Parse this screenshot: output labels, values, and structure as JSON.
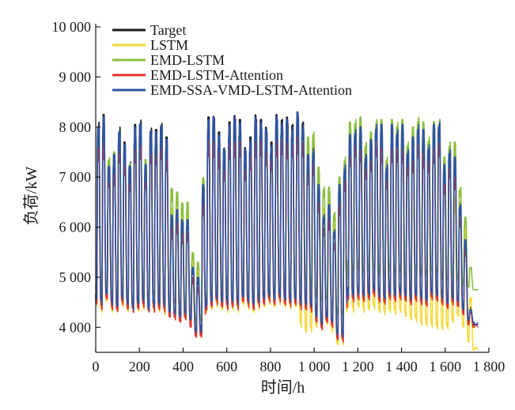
{
  "chart_data": {
    "type": "line",
    "xlabel": "时间/h",
    "ylabel": "负荷/kW",
    "xlim": [
      0,
      1800
    ],
    "ylim": [
      3500,
      10000
    ],
    "xticks": [
      0,
      200,
      400,
      600,
      800,
      1000,
      1200,
      1400,
      1600,
      1800
    ],
    "xtick_labels": [
      "0",
      "200",
      "400",
      "600",
      "800",
      "1 000",
      "1 200",
      "1 400",
      "1 600",
      "1 800"
    ],
    "yticks": [
      4000,
      5000,
      6000,
      7000,
      8000,
      9000,
      10000
    ],
    "ytick_labels": [
      "4 000",
      "5 000",
      "6 000",
      "7 000",
      "8 000",
      "9 000",
      "10 000"
    ],
    "legend_position": "top-left",
    "grid": false,
    "period_hours": 24,
    "x_start": 0,
    "x_end": 1750,
    "day_cycles": {
      "start": [
        0,
        24,
        48,
        72,
        96,
        120,
        144,
        168,
        192,
        216,
        240,
        264,
        288,
        312,
        336,
        360,
        384,
        408,
        432,
        456,
        480,
        504,
        528,
        552,
        576,
        600,
        624,
        648,
        672,
        696,
        720,
        744,
        768,
        792,
        816,
        840,
        864,
        888,
        912,
        936,
        960,
        984,
        1008,
        1032,
        1056,
        1080,
        1104,
        1128,
        1152,
        1176,
        1200,
        1224,
        1248,
        1272,
        1296,
        1320,
        1344,
        1368,
        1392,
        1416,
        1440,
        1464,
        1488,
        1512,
        1536,
        1560,
        1584,
        1608,
        1632,
        1656,
        1680,
        1704,
        1728
      ]
    },
    "series": [
      {
        "name": "Target",
        "color": "#1a1a1a",
        "peaks": [
          8100,
          8250,
          7300,
          7500,
          8000,
          7700,
          7300,
          8050,
          8150,
          7300,
          8000,
          7950,
          8100,
          7800,
          6300,
          6400,
          6200,
          6200,
          5200,
          5000,
          6900,
          8200,
          8250,
          7900,
          7600,
          8100,
          8250,
          8150,
          7600,
          7800,
          8250,
          8150,
          8000,
          7700,
          8250,
          8150,
          8200,
          8050,
          8300,
          8100,
          7500,
          7600,
          6900,
          6300,
          6500,
          6000,
          6900,
          7300,
          7900,
          8000,
          8050,
          7500,
          7800,
          8100,
          8100,
          7300,
          8100,
          8000,
          8100,
          7600,
          7850,
          8100,
          8000,
          7700,
          8100,
          8150,
          7300,
          7600,
          7450,
          6500,
          5800,
          4400,
          4050
        ],
        "troughs": [
          4500,
          4400,
          4600,
          4400,
          4350,
          4500,
          4400,
          4300,
          4400,
          4450,
          4300,
          4350,
          4400,
          4350,
          4250,
          4200,
          4150,
          4200,
          4100,
          3850,
          3850,
          4400,
          4450,
          4500,
          4450,
          4400,
          4450,
          4400,
          4550,
          4450,
          4400,
          4450,
          4500,
          4550,
          4500,
          4550,
          4500,
          4450,
          4500,
          4400,
          4400,
          4350,
          4150,
          4000,
          4150,
          4050,
          3800,
          3750,
          4600,
          4550,
          4600,
          4550,
          4600,
          4650,
          4550,
          4500,
          4600,
          4550,
          4600,
          4550,
          4500,
          4550,
          4500,
          4450,
          4600,
          4550,
          4500,
          4400,
          4500,
          4450,
          4300,
          4100,
          4050
        ]
      },
      {
        "name": "LSTM",
        "color": "#f4d93a",
        "peaks": [
          7900,
          8000,
          7200,
          7300,
          7800,
          7500,
          7150,
          7850,
          7950,
          7200,
          7800,
          7750,
          7900,
          7600,
          6400,
          6500,
          6300,
          6300,
          5400,
          5200,
          6800,
          8000,
          8050,
          7700,
          7450,
          7900,
          8050,
          7950,
          7450,
          7600,
          8050,
          7950,
          7800,
          7500,
          8050,
          7950,
          8000,
          7850,
          8050,
          7900,
          7350,
          7450,
          6900,
          6400,
          6600,
          6100,
          6800,
          7150,
          7700,
          7800,
          7850,
          7350,
          7600,
          7900,
          7900,
          7150,
          7900,
          7800,
          7900,
          7450,
          7650,
          7900,
          7800,
          7500,
          7900,
          7950,
          7150,
          7450,
          6600,
          6300,
          6000,
          4600,
          3600
        ],
        "troughs": [
          4400,
          4300,
          4500,
          4300,
          4300,
          4400,
          4300,
          4350,
          4300,
          4350,
          4300,
          4300,
          4300,
          4250,
          4200,
          4150,
          4100,
          4150,
          4050,
          4000,
          3900,
          4300,
          4350,
          4400,
          4350,
          4300,
          4350,
          4300,
          4450,
          4350,
          4300,
          4350,
          4400,
          4450,
          4400,
          4450,
          4400,
          4350,
          4400,
          4000,
          3900,
          3900,
          4000,
          3950,
          4050,
          3900,
          3650,
          3650,
          4400,
          4300,
          4400,
          4300,
          4350,
          4350,
          4300,
          4250,
          4300,
          4250,
          4300,
          4200,
          4150,
          4100,
          4050,
          4000,
          4000,
          3950,
          3950,
          3950,
          4100,
          4200,
          4000,
          3700,
          3550
        ]
      },
      {
        "name": "EMD-LSTM",
        "color": "#8cbf3f",
        "peaks": [
          8000,
          8100,
          7400,
          7500,
          7900,
          7600,
          7300,
          7950,
          8000,
          7350,
          7900,
          7850,
          8000,
          7700,
          6800,
          6700,
          6500,
          6500,
          5500,
          5300,
          7000,
          8100,
          8150,
          7800,
          7550,
          8000,
          8150,
          8050,
          7550,
          7700,
          8150,
          8050,
          7900,
          7600,
          8150,
          8050,
          8100,
          7950,
          8200,
          8000,
          7800,
          7900,
          7200,
          6800,
          6800,
          6300,
          7000,
          7400,
          8100,
          8150,
          8200,
          7700,
          7900,
          8150,
          8150,
          7400,
          8150,
          8100,
          8150,
          7700,
          8000,
          8200,
          8100,
          7800,
          8100,
          8150,
          7400,
          7700,
          7700,
          6800,
          6200,
          5200,
          4750
        ],
        "troughs": [
          4700,
          4600,
          4800,
          4600,
          4550,
          4700,
          4600,
          4500,
          4650,
          4700,
          4550,
          4600,
          4650,
          4600,
          4500,
          4450,
          4400,
          4450,
          4300,
          4100,
          4100,
          4600,
          4650,
          4700,
          4650,
          4600,
          4650,
          4600,
          4750,
          4650,
          4600,
          4650,
          4700,
          4750,
          4700,
          4750,
          4700,
          4650,
          4700,
          4850,
          4900,
          4800,
          4600,
          4500,
          4550,
          4400,
          4250,
          4200,
          5200,
          5100,
          5150,
          5050,
          5100,
          5150,
          5050,
          5000,
          5100,
          5050,
          5100,
          5000,
          5050,
          5100,
          5050,
          5000,
          5100,
          5050,
          4950,
          4900,
          5000,
          4950,
          4850,
          4800,
          4750
        ]
      },
      {
        "name": "EMD-LSTM-Attention",
        "color": "#e0342a",
        "peaks": [
          7700,
          7800,
          7100,
          7200,
          7700,
          7400,
          7050,
          7700,
          7800,
          7100,
          7700,
          7650,
          7800,
          7500,
          6000,
          6100,
          5900,
          5900,
          5000,
          4800,
          6600,
          7800,
          7850,
          7500,
          7300,
          7700,
          7850,
          7750,
          7300,
          7450,
          7850,
          7750,
          7650,
          7400,
          7850,
          7750,
          7800,
          7700,
          7900,
          7700,
          7200,
          7300,
          6600,
          6000,
          6200,
          5700,
          6600,
          7000,
          7600,
          7700,
          7700,
          7200,
          7500,
          7700,
          7700,
          7000,
          7700,
          7600,
          7700,
          7300,
          7500,
          7700,
          7600,
          7400,
          7700,
          7750,
          7000,
          7300,
          7100,
          6200,
          5600,
          4300,
          4050
        ],
        "troughs": [
          4450,
          4350,
          4550,
          4350,
          4300,
          4450,
          4350,
          4300,
          4350,
          4400,
          4300,
          4300,
          4350,
          4300,
          4200,
          4150,
          4100,
          4150,
          4000,
          3800,
          3800,
          4350,
          4400,
          4450,
          4400,
          4350,
          4400,
          4350,
          4500,
          4400,
          4350,
          4400,
          4450,
          4500,
          4450,
          4500,
          4450,
          4400,
          4450,
          4350,
          4350,
          4300,
          4100,
          3950,
          4100,
          4000,
          3750,
          3700,
          4550,
          4500,
          4550,
          4500,
          4550,
          4600,
          4500,
          4450,
          4550,
          4500,
          4550,
          4500,
          4450,
          4500,
          4450,
          4400,
          4550,
          4500,
          4450,
          4350,
          4450,
          4400,
          4250,
          4050,
          4000
        ]
      },
      {
        "name": "EMD-SSA-VMD-LSTM-Attention",
        "color": "#2f53a6",
        "peaks": [
          8050,
          8200,
          7250,
          7450,
          7950,
          7650,
          7250,
          8000,
          8100,
          7250,
          7950,
          7900,
          8050,
          7750,
          6250,
          6350,
          6150,
          6150,
          5200,
          5000,
          6850,
          8150,
          8200,
          7850,
          7550,
          8050,
          8200,
          8100,
          7550,
          7750,
          8200,
          8100,
          7950,
          7650,
          8200,
          8100,
          8150,
          8000,
          8300,
          8050,
          7450,
          7550,
          6850,
          6250,
          6450,
          5950,
          6850,
          7250,
          7850,
          7950,
          8000,
          7450,
          7750,
          8050,
          8050,
          7250,
          8050,
          7950,
          8050,
          7550,
          7800,
          8050,
          7950,
          7650,
          8050,
          8100,
          7250,
          7550,
          7400,
          6450,
          5750,
          4350,
          4050
        ],
        "troughs": [
          4550,
          4450,
          4650,
          4450,
          4400,
          4550,
          4450,
          4350,
          4450,
          4500,
          4350,
          4400,
          4450,
          4400,
          4300,
          4250,
          4200,
          4250,
          4150,
          3900,
          3900,
          4450,
          4500,
          4550,
          4500,
          4450,
          4500,
          4450,
          4600,
          4500,
          4450,
          4500,
          4550,
          4600,
          4550,
          4600,
          4550,
          4500,
          4550,
          4450,
          4450,
          4400,
          4200,
          4050,
          4200,
          4100,
          3850,
          3800,
          4650,
          4600,
          4650,
          4600,
          4650,
          4700,
          4600,
          4550,
          4650,
          4600,
          4650,
          4600,
          4550,
          4600,
          4550,
          4500,
          4650,
          4600,
          4550,
          4450,
          4550,
          4500,
          4350,
          4150,
          4100
        ]
      }
    ]
  }
}
